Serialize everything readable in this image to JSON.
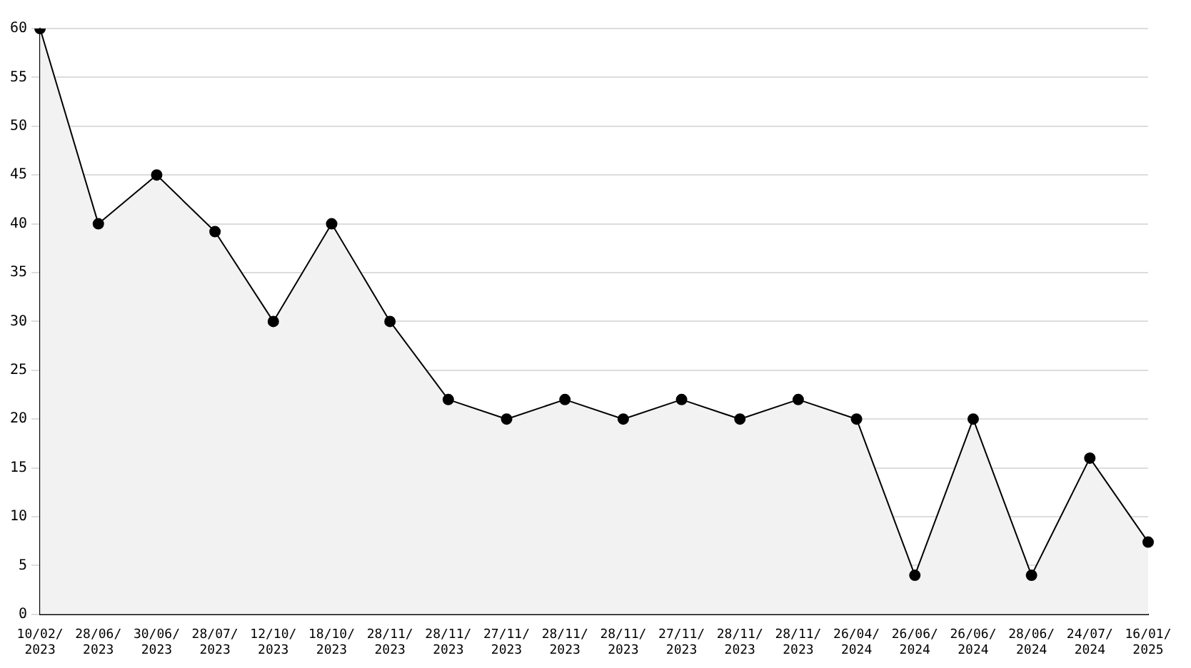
{
  "chart_data": {
    "type": "area",
    "categories": [
      "10/02/2023",
      "28/06/2023",
      "30/06/2023",
      "28/07/2023",
      "12/10/2023",
      "18/10/2023",
      "28/11/2023",
      "28/11/2023",
      "27/11/2023",
      "28/11/2023",
      "28/11/2023",
      "27/11/2023",
      "28/11/2023",
      "28/11/2023",
      "26/04/2024",
      "26/06/2024",
      "26/06/2024",
      "28/06/2024",
      "24/07/2024",
      "16/01/2025"
    ],
    "series": [
      {
        "color": "#000000",
        "values": [
          60,
          40,
          45,
          39.2,
          30,
          40,
          30,
          22,
          20,
          22,
          20,
          22,
          20,
          22,
          20,
          4,
          20,
          4,
          16,
          7.4
        ]
      }
    ],
    "ylim": [
      0,
      60
    ],
    "yticks": [
      0,
      5,
      10,
      15,
      20,
      25,
      30,
      35,
      40,
      45,
      50,
      55,
      60
    ],
    "grid": "y",
    "legend": false,
    "marker": "circle",
    "line_style": "solid"
  }
}
